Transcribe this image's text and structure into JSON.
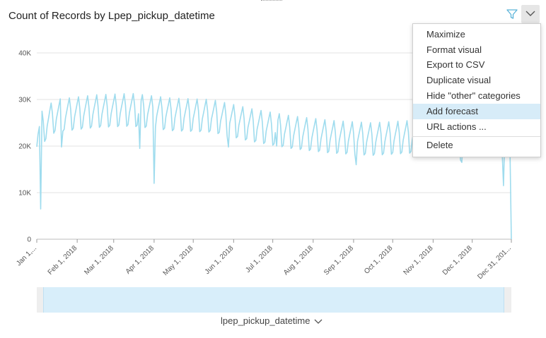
{
  "visual": {
    "title": "Count of Records by Lpep_pickup_datetime",
    "icons": {
      "filter": "filter-icon",
      "menu": "chevron-down-icon"
    },
    "x_field": "lpep_pickup_datetime",
    "accent_color": "#9fdcee"
  },
  "menu": {
    "items": [
      "Maximize",
      "Format visual",
      "Export to CSV",
      "Duplicate visual",
      "Hide \"other\" categories",
      "Add forecast",
      "URL actions ..."
    ],
    "highlighted": "Add forecast",
    "delete_label": "Delete"
  },
  "chart_data": {
    "type": "line",
    "y_ticks": [
      "0",
      "10K",
      "20K",
      "30K",
      "40K"
    ],
    "x_ticks": [
      "Jan 1,...",
      "Feb 1, 2018",
      "Mar 1, 2018",
      "Apr 1, 2018",
      "May 1, 2018",
      "Jun 1, 2018",
      "Jul 1, 2018",
      "Aug 1, 2018",
      "Sep 1, 2018",
      "Oct 1, 2018",
      "Nov 1, 2018",
      "Dec 1, 2018",
      "Dec 31, 201..."
    ],
    "ylim": [
      0,
      40000
    ],
    "grid": true,
    "series": [
      {
        "color": "#9fdcee",
        "x_start": "2018-01-01",
        "x_end": "2018-12-31",
        "baseline_points": [
          [
            "2018-01-01",
            23000
          ],
          [
            "2018-01-15",
            26500
          ],
          [
            "2018-02-15",
            27500
          ],
          [
            "2018-03-15",
            27800
          ],
          [
            "2018-04-15",
            26800
          ],
          [
            "2018-05-15",
            26500
          ],
          [
            "2018-06-15",
            24500
          ],
          [
            "2018-07-15",
            23000
          ],
          [
            "2018-08-15",
            22000
          ],
          [
            "2018-09-15",
            21500
          ],
          [
            "2018-10-15",
            22000
          ],
          [
            "2018-11-15",
            22300
          ],
          [
            "2018-12-31",
            21500
          ]
        ],
        "weekly_amplitude": 7000,
        "anomalies": [
          [
            "2018-01-04",
            6500
          ],
          [
            "2018-01-05",
            27500
          ],
          [
            "2018-01-20",
            19800
          ],
          [
            "2018-03-21",
            19500
          ],
          [
            "2018-04-01",
            12000
          ],
          [
            "2018-05-28",
            19800
          ],
          [
            "2018-07-04",
            20000
          ],
          [
            "2018-09-03",
            16000
          ],
          [
            "2018-11-22",
            17000
          ],
          [
            "2018-11-23",
            16500
          ],
          [
            "2018-12-25",
            11500
          ],
          [
            "2018-12-31",
            0
          ]
        ]
      }
    ]
  }
}
